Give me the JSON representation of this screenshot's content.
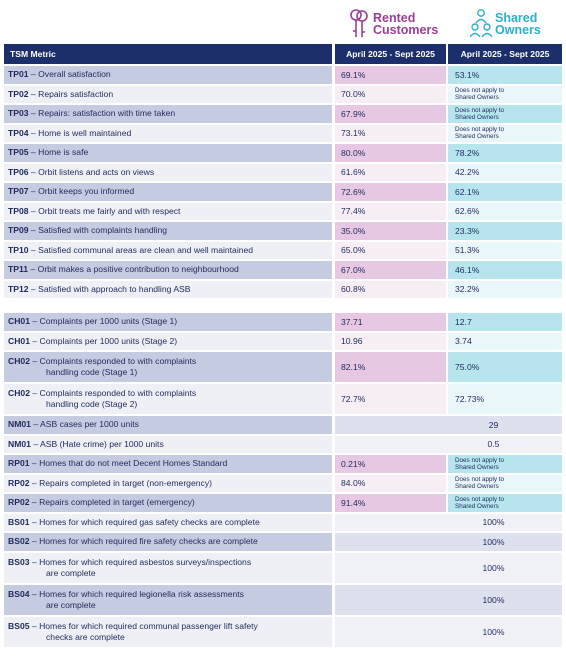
{
  "legend": {
    "rented": {
      "line1": "Rented",
      "line2": "Customers",
      "color": "#9b3f95",
      "icon": "keys-icon"
    },
    "shared": {
      "line1": "Shared",
      "line2": "Owners",
      "color": "#2ab1c9",
      "icon": "people-icon"
    }
  },
  "header": {
    "metric": "TSM Metric",
    "rented": "April 2025 - Sept 2025",
    "shared": "April 2025 - Sept 2025"
  },
  "na_text": {
    "line1": "Does not apply to",
    "line2": "Shared Owners"
  },
  "colors": {
    "header_bg": "#1d2f6b",
    "metric_shade": "#c5cbe1",
    "rented_shade": "#e6c8e3",
    "shared_shade": "#b7e5ee"
  },
  "tp": [
    {
      "code": "TP01",
      "label": "Overall satisfaction",
      "rented": "69.1%",
      "shared": "53.1%"
    },
    {
      "code": "TP02",
      "label": "Repairs satisfaction",
      "rented": "70.0%",
      "shared": null
    },
    {
      "code": "TP03",
      "label": "Repairs: satisfaction with time taken",
      "rented": "67.9%",
      "shared": null
    },
    {
      "code": "TP04",
      "label": "Home is well maintained",
      "rented": "73.1%",
      "shared": null
    },
    {
      "code": "TP05",
      "label": "Home is safe",
      "rented": "80.0%",
      "shared": "78.2%"
    },
    {
      "code": "TP06",
      "label": "Orbit listens and acts on views",
      "rented": "61.6%",
      "shared": "42.2%"
    },
    {
      "code": "TP07",
      "label": "Orbit keeps you informed",
      "rented": "72.6%",
      "shared": "62.1%"
    },
    {
      "code": "TP08",
      "label": "Orbit treats me fairly and with respect",
      "rented": "77.4%",
      "shared": "62.6%"
    },
    {
      "code": "TP09",
      "label": "Satisfied with complaints handling",
      "rented": "35.0%",
      "shared": "23.3%"
    },
    {
      "code": "TP10",
      "label": "Satisfied communal areas are clean and well maintained",
      "rented": "65.0%",
      "shared": "51.3%"
    },
    {
      "code": "TP11",
      "label": "Orbit makes a positive contribution to neighbourhood",
      "rented": "67.0%",
      "shared": "46.1%"
    },
    {
      "code": "TP12",
      "label": "Satisfied with approach to handling ASB",
      "rented": "60.8%",
      "shared": "32.2%"
    }
  ],
  "ops": [
    {
      "code": "CH01",
      "label": "Complaints per 1000 units (Stage 1)",
      "rented": "37.71",
      "shared": "12.7"
    },
    {
      "code": "CH01",
      "label": "Complaints per 1000 units (Stage 2)",
      "rented": "10.96",
      "shared": "3.74"
    },
    {
      "code": "CH02",
      "label": "Complaints responded to with complaints",
      "label2": "handling code (Stage 1)",
      "rented": "82.1%",
      "shared": "75.0%"
    },
    {
      "code": "CH02",
      "label": "Complaints responded to with complaints",
      "label2": "handling code (Stage 2)",
      "rented": "72.7%",
      "shared": "72.73%"
    },
    {
      "code": "NM01",
      "label": "ASB cases per 1000 units",
      "merged": "29"
    },
    {
      "code": "NM01",
      "label": "ASB (Hate crime) per 1000 units",
      "merged": "0.5"
    },
    {
      "code": "RP01",
      "label": "Homes that do not meet Decent Homes Standard",
      "rented": "0.21%",
      "shared": null
    },
    {
      "code": "RP02",
      "label": "Repairs completed in target (non-emergency)",
      "rented": "84.0%",
      "shared": null
    },
    {
      "code": "RP02",
      "label": "Repairs completed in target (emergency)",
      "rented": "91.4%",
      "shared": null
    },
    {
      "code": "BS01",
      "label": "Homes for which required gas safety checks are complete",
      "merged": "100%"
    },
    {
      "code": "BS02",
      "label": "Homes for which required fire safety checks are complete",
      "merged": "100%"
    },
    {
      "code": "BS03",
      "label": "Homes for which required asbestos surveys/inspections",
      "label2": "are complete",
      "merged": "100%"
    },
    {
      "code": "BS04",
      "label": "Homes for which required legionella risk assessments",
      "label2": "are complete",
      "merged": "100%"
    },
    {
      "code": "BS05",
      "label": "Homes for which required communal passenger lift safety",
      "label2": "checks are complete",
      "merged": "100%"
    }
  ]
}
